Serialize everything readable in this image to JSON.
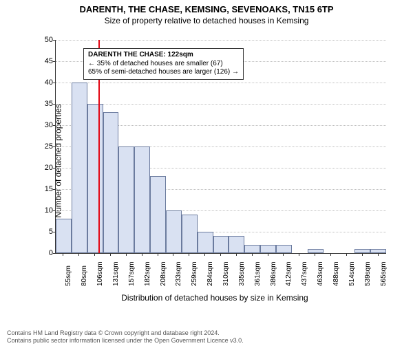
{
  "title": "DARENTH, THE CHASE, KEMSING, SEVENOAKS, TN15 6TP",
  "subtitle": "Size of property relative to detached houses in Kemsing",
  "chart": {
    "type": "histogram",
    "ylabel": "Number of detached properties",
    "xlabel": "Distribution of detached houses by size in Kemsing",
    "ylim": [
      0,
      50
    ],
    "ytick_step": 5,
    "x_labels": [
      "55sqm",
      "80sqm",
      "106sqm",
      "131sqm",
      "157sqm",
      "182sqm",
      "208sqm",
      "233sqm",
      "259sqm",
      "284sqm",
      "310sqm",
      "335sqm",
      "361sqm",
      "386sqm",
      "412sqm",
      "437sqm",
      "463sqm",
      "488sqm",
      "514sqm",
      "539sqm",
      "565sqm"
    ],
    "values": [
      8,
      40,
      35,
      33,
      25,
      25,
      18,
      10,
      9,
      5,
      4,
      4,
      2,
      2,
      2,
      0,
      1,
      0,
      0,
      1,
      1
    ],
    "bar_color": "#d9e1f2",
    "bar_border_color": "#6b7b9e",
    "grid_color": "#bfbfbf",
    "background_color": "#ffffff",
    "reference_line": {
      "at_index": 2.7,
      "color": "#e30613"
    },
    "annotation": {
      "title": "DARENTH THE CHASE: 122sqm",
      "line2": "← 35% of detached houses are smaller (67)",
      "line3": "65% of semi-detached houses are larger (126) →"
    },
    "label_fontsize": 12,
    "tick_fontsize": 11
  },
  "footer": {
    "line1": "Contains HM Land Registry data © Crown copyright and database right 2024.",
    "line2": "Contains public sector information licensed under the Open Government Licence v3.0."
  }
}
